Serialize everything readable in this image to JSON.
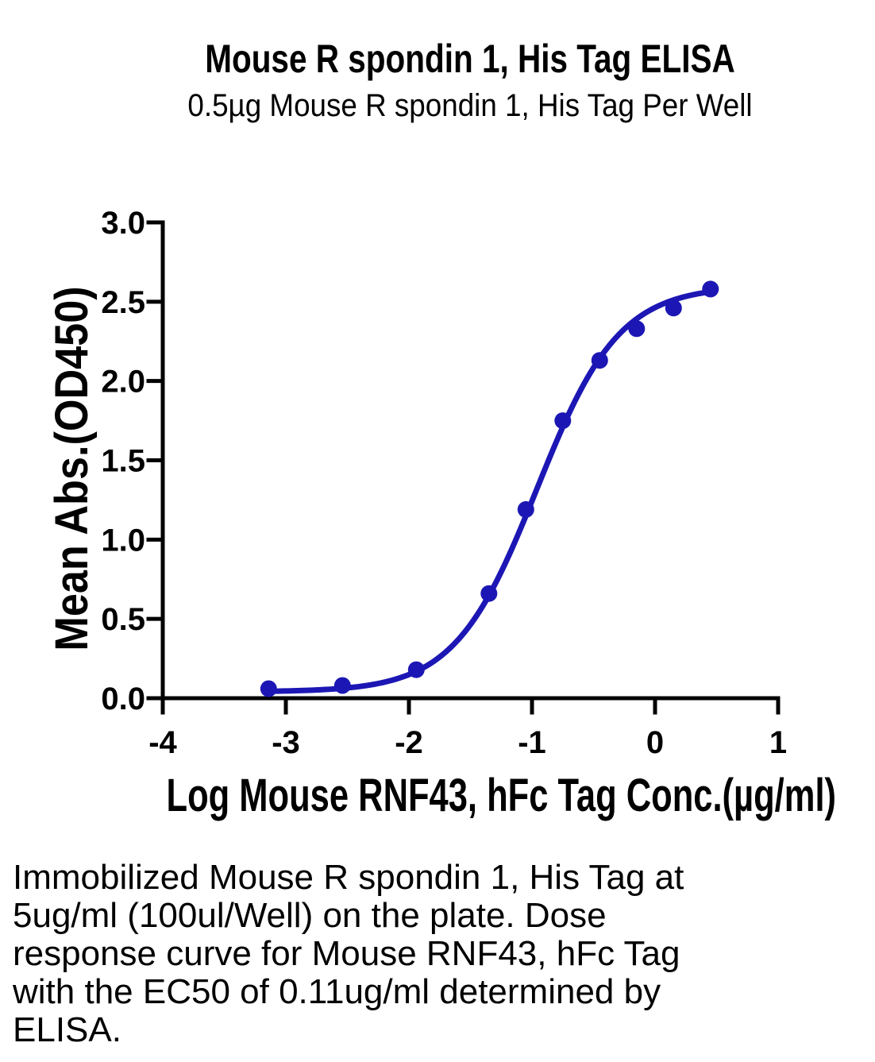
{
  "title": "Mouse R spondin 1, His Tag ELISA",
  "subtitle": "0.5µg Mouse R spondin 1, His Tag Per Well",
  "caption": {
    "lines": [
      "Immobilized Mouse R spondin 1, His Tag at",
      "5ug/ml (100ul/Well) on the plate. Dose",
      "response curve for Mouse RNF43, hFc Tag",
      "with the EC50 of 0.11ug/ml determined by",
      "ELISA."
    ]
  },
  "chart_data": {
    "type": "scatter",
    "title": "Mouse R spondin 1, His Tag ELISA",
    "subtitle": "0.5µg Mouse R spondin 1, His Tag Per Well",
    "xlabel": "Log Mouse RNF43, hFc Tag Conc.(µg/ml)",
    "ylabel": "Mean Abs.(OD450)",
    "xlim": [
      -4,
      1
    ],
    "ylim": [
      0,
      3
    ],
    "x_ticks": {
      "values": [
        -4,
        -3,
        -2,
        -1,
        0,
        1
      ],
      "labels": [
        "-4",
        "-3",
        "-2",
        "-1",
        "0",
        "1"
      ]
    },
    "y_ticks": {
      "values": [
        0,
        0.5,
        1,
        1.5,
        2,
        2.5,
        3
      ],
      "labels": [
        "0.0",
        "0.5",
        "1.0",
        "1.5",
        "2.0",
        "2.5",
        "3.0"
      ]
    },
    "series": [
      {
        "name": "Mouse RNF43, hFc Tag",
        "x": [
          -3.14,
          -2.54,
          -1.94,
          -1.35,
          -1.05,
          -0.75,
          -0.45,
          -0.15,
          0.15,
          0.45
        ],
        "y": [
          0.06,
          0.08,
          0.18,
          0.66,
          1.19,
          1.75,
          2.13,
          2.33,
          2.46,
          2.58
        ]
      }
    ],
    "fit": {
      "model": "4PL",
      "bottom": 0.04,
      "top": 2.6,
      "log_ec50": -0.96,
      "hill": 1.3,
      "x_range": [
        -3.14,
        0.45
      ],
      "ec50": "0.11ug/ml"
    },
    "grid": false,
    "legend": false,
    "colors": {
      "curve": "#1c17b4",
      "marker": "#1c17b4",
      "axis": "#000000",
      "text": "#000000"
    }
  }
}
